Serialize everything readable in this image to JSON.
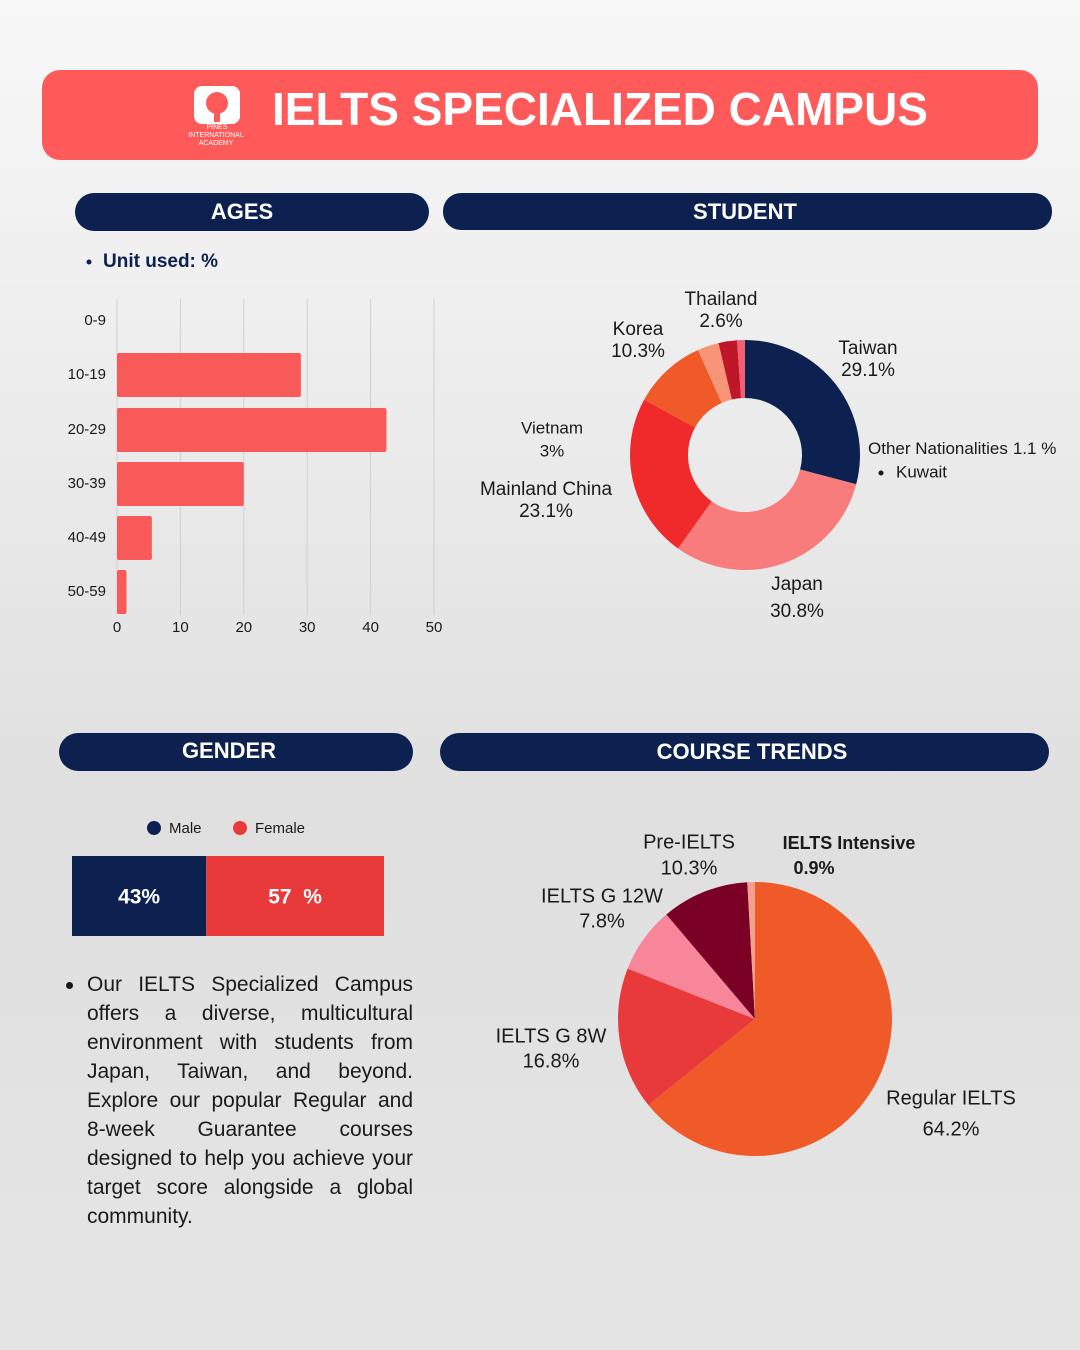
{
  "header": {
    "title": "IELTS SPECIALIZED CAMPUS",
    "logo_text": [
      "PINES",
      "INTERNATIONAL",
      "ACADEMY"
    ]
  },
  "chart_data": [
    {
      "type": "bar",
      "title": "AGES",
      "note": "Unit used: %",
      "categories": [
        "0-9",
        "10-19",
        "20-29",
        "30-39",
        "40-49",
        "50-59"
      ],
      "values": [
        0,
        29,
        42.5,
        20,
        5.5,
        1.5
      ],
      "color": "#f85a5a",
      "xlim": [
        0,
        50
      ],
      "xticks": [
        0,
        10,
        20,
        30,
        40,
        50
      ],
      "grid": true
    },
    {
      "type": "donut",
      "title": "STUDENT",
      "categories": [
        "Taiwan",
        "Japan",
        "Mainland China",
        "Korea",
        "Vietnam",
        "Thailand",
        "Other Nationalities"
      ],
      "values": [
        29.1,
        30.8,
        23.1,
        10.3,
        3,
        2.6,
        1.1
      ],
      "value_labels": [
        "29.1%",
        "30.8%",
        "23.1%",
        "10.3%",
        "3%",
        "2.6%",
        "1.1 %"
      ],
      "colors": [
        "#0d2150",
        "#f87c7c",
        "#f02a2a",
        "#f05a28",
        "#f89478",
        "#c0162a",
        "#f06070"
      ],
      "other_nationalities": [
        "Kuwait"
      ]
    },
    {
      "type": "stacked_bar",
      "title": "GENDER",
      "xlim": [
        0,
        100
      ],
      "series": [
        {
          "name": "Male",
          "color": "#0d2150",
          "values": [
            43
          ],
          "value_labels": [
            "43%"
          ]
        },
        {
          "name": "Female",
          "color": "#e8393b",
          "values": [
            57
          ],
          "value_labels": [
            "57  %"
          ]
        }
      ]
    },
    {
      "type": "pie",
      "title": "COURSE TRENDS",
      "categories": [
        "Regular IELTS",
        "IELTS G 8W",
        "IELTS G 12W",
        "Pre-IELTS",
        "IELTS Intensive"
      ],
      "values": [
        64.2,
        16.8,
        7.8,
        10.3,
        0.9
      ],
      "value_labels": [
        "64.2%",
        "16.8%",
        "7.8%",
        "10.3%",
        "0.9%"
      ],
      "colors": [
        "#f05a28",
        "#e8393b",
        "#f7869a",
        "#7a0026",
        "#f4a090"
      ]
    }
  ],
  "description": "Our IELTS Specialized Campus offers a diverse, multicultural environment with students from Japan, Taiwan, and beyond. Explore our popular Regular and 8-week Guarantee courses designed to help you achieve your target score alongside a global community."
}
